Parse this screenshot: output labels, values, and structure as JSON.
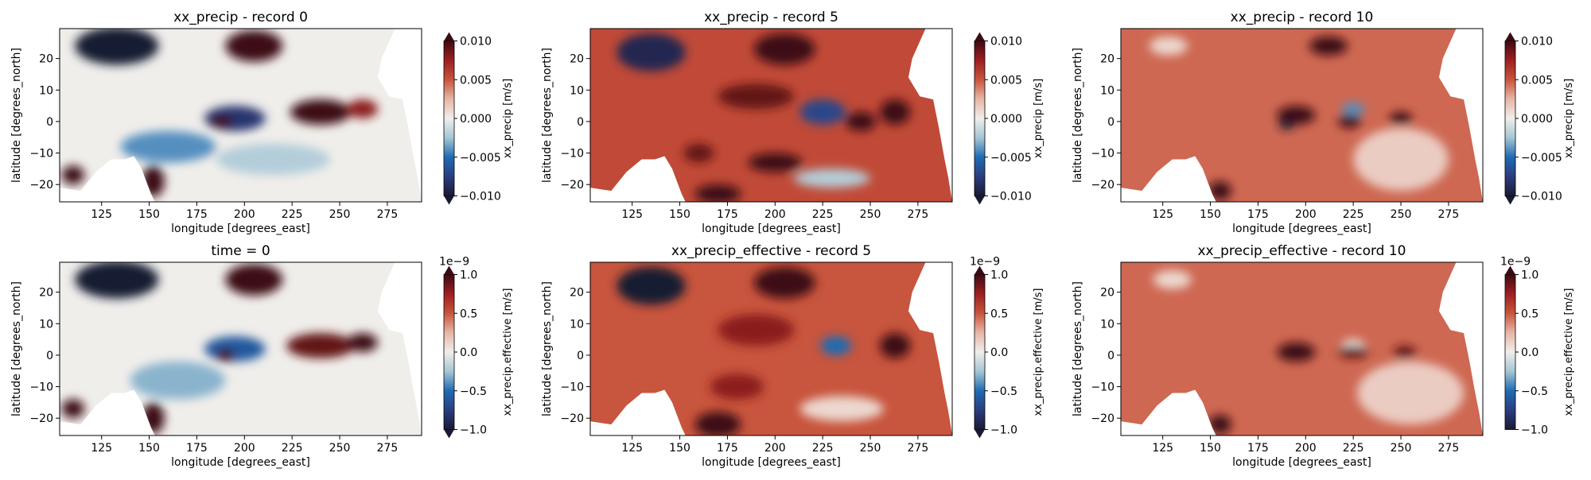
{
  "colors": {
    "cmap_stops": [
      "#191a33",
      "#2b3d7e",
      "#1f6bb3",
      "#a5c6d4",
      "#f0eeeb",
      "#e7b6a6",
      "#c8553d",
      "#9e1f20",
      "#3d0b13"
    ],
    "land_mask": "#ffffff",
    "frame": "#000000"
  },
  "chart_data": [
    {
      "type": "heatmap",
      "title": "xx_precip - record 0",
      "xlabel": "longitude [degrees_east]",
      "ylabel": "latitude [degrees_north]",
      "xlim": [
        103,
        293
      ],
      "ylim": [
        -25.5,
        29.5
      ],
      "xticks": [
        125,
        150,
        175,
        200,
        225,
        250,
        275
      ],
      "yticks": [
        -20,
        -10,
        0,
        10,
        20
      ],
      "colorbar": {
        "label": "xx_precip [m/s]",
        "vmin": -0.01,
        "vmax": 0.01,
        "ticks": [
          "0.010",
          "0.005",
          "0.000",
          "−0.005",
          "−0.010"
        ],
        "exponent": "",
        "extend": "both"
      },
      "background": 0.0,
      "blobs": [
        {
          "lon": 133,
          "lat": 24,
          "rx": 22,
          "ry": 6,
          "value": -0.012
        },
        {
          "lon": 205,
          "lat": 24,
          "rx": 15,
          "ry": 5,
          "value": 0.011
        },
        {
          "lon": 195,
          "lat": 1,
          "rx": 16,
          "ry": 4,
          "value": -0.008
        },
        {
          "lon": 240,
          "lat": 3,
          "rx": 16,
          "ry": 4,
          "value": 0.01
        },
        {
          "lon": 262,
          "lat": 4,
          "rx": 8,
          "ry": 3,
          "value": 0.008
        },
        {
          "lon": 188,
          "lat": 0,
          "rx": 6,
          "ry": 2,
          "value": 0.011
        },
        {
          "lon": 160,
          "lat": -8,
          "rx": 25,
          "ry": 5,
          "value": -0.004
        },
        {
          "lon": 215,
          "lat": -12,
          "rx": 30,
          "ry": 5,
          "value": -0.002
        },
        {
          "lon": 110,
          "lat": -17,
          "rx": 6,
          "ry": 3,
          "value": 0.011
        },
        {
          "lon": 152,
          "lat": -19,
          "rx": 6,
          "ry": 5,
          "value": 0.01
        }
      ]
    },
    {
      "type": "heatmap",
      "title": "xx_precip - record 5",
      "xlabel": "longitude [degrees_east]",
      "ylabel": "latitude [degrees_north]",
      "xlim": [
        103,
        293
      ],
      "ylim": [
        -25.5,
        29.5
      ],
      "xticks": [
        125,
        150,
        175,
        200,
        225,
        250,
        275
      ],
      "yticks": [
        -20,
        -10,
        0,
        10,
        20
      ],
      "colorbar": {
        "label": "xx_precip [m/s]",
        "vmin": -0.01,
        "vmax": 0.01,
        "ticks": [
          "0.010",
          "0.005",
          "0.000",
          "−0.005",
          "−0.010"
        ],
        "exponent": "",
        "extend": "both"
      },
      "background": 0.0055,
      "blobs": [
        {
          "lon": 135,
          "lat": 22,
          "rx": 18,
          "ry": 6,
          "value": -0.009
        },
        {
          "lon": 205,
          "lat": 23,
          "rx": 16,
          "ry": 5,
          "value": 0.011
        },
        {
          "lon": 225,
          "lat": 3,
          "rx": 12,
          "ry": 4,
          "value": -0.007
        },
        {
          "lon": 263,
          "lat": 3,
          "rx": 8,
          "ry": 4,
          "value": 0.011
        },
        {
          "lon": 245,
          "lat": 0,
          "rx": 8,
          "ry": 3,
          "value": 0.01
        },
        {
          "lon": 200,
          "lat": -13,
          "rx": 14,
          "ry": 3,
          "value": 0.01
        },
        {
          "lon": 170,
          "lat": -23,
          "rx": 12,
          "ry": 3,
          "value": 0.012
        },
        {
          "lon": 230,
          "lat": -18,
          "rx": 20,
          "ry": 3,
          "value": -0.002
        },
        {
          "lon": 190,
          "lat": 8,
          "rx": 20,
          "ry": 4,
          "value": 0.009
        },
        {
          "lon": 160,
          "lat": -10,
          "rx": 8,
          "ry": 3,
          "value": 0.009
        }
      ]
    },
    {
      "type": "heatmap",
      "title": "xx_precip - record 10",
      "xlabel": "longitude [degrees_east]",
      "ylabel": "latitude [degrees_north]",
      "xlim": [
        103,
        293
      ],
      "ylim": [
        -25.5,
        29.5
      ],
      "xticks": [
        125,
        150,
        175,
        200,
        225,
        250,
        275
      ],
      "yticks": [
        -20,
        -10,
        0,
        10,
        20
      ],
      "colorbar": {
        "label": "xx_precip [m/s]",
        "vmin": -0.01,
        "vmax": 0.01,
        "ticks": [
          "0.010",
          "0.005",
          "0.000",
          "−0.005",
          "−0.010"
        ],
        "exponent": "",
        "extend": "both"
      },
      "background": 0.0045,
      "blobs": [
        {
          "lon": 212,
          "lat": 24,
          "rx": 10,
          "ry": 3,
          "value": 0.011
        },
        {
          "lon": 128,
          "lat": 24,
          "rx": 10,
          "ry": 3,
          "value": 0.001
        },
        {
          "lon": 195,
          "lat": 2,
          "rx": 10,
          "ry": 3,
          "value": 0.011
        },
        {
          "lon": 190,
          "lat": -1,
          "rx": 4,
          "ry": 1.5,
          "value": -0.011
        },
        {
          "lon": 225,
          "lat": 4,
          "rx": 6,
          "ry": 2,
          "value": -0.004
        },
        {
          "lon": 223,
          "lat": 0,
          "rx": 6,
          "ry": 2,
          "value": 0.011
        },
        {
          "lon": 250,
          "lat": 1,
          "rx": 6,
          "ry": 2,
          "value": 0.011
        },
        {
          "lon": 250,
          "lat": -12,
          "rx": 25,
          "ry": 10,
          "value": 0.0015
        },
        {
          "lon": 155,
          "lat": -22,
          "rx": 6,
          "ry": 3,
          "value": 0.012
        }
      ]
    },
    {
      "type": "heatmap",
      "title": "time = 0",
      "xlabel": "longitude [degrees_east]",
      "ylabel": "latitude [degrees_north]",
      "xlim": [
        103,
        293
      ],
      "ylim": [
        -25.5,
        29.5
      ],
      "xticks": [
        125,
        150,
        175,
        200,
        225,
        250,
        275
      ],
      "yticks": [
        -20,
        -10,
        0,
        10,
        20
      ],
      "colorbar": {
        "label": "xx_precip.effective [m/s]",
        "vmin": -1.0,
        "vmax": 1.0,
        "ticks": [
          "1.0",
          "0.5",
          "0.0",
          "−0.5",
          "−1.0"
        ],
        "exponent": "1e−9",
        "extend": "both"
      },
      "background": 0.0,
      "blobs": [
        {
          "lon": 133,
          "lat": 24,
          "rx": 22,
          "ry": 6,
          "value": -1.2
        },
        {
          "lon": 205,
          "lat": 24,
          "rx": 15,
          "ry": 5,
          "value": 1.1
        },
        {
          "lon": 195,
          "lat": 2,
          "rx": 16,
          "ry": 4,
          "value": -0.6
        },
        {
          "lon": 240,
          "lat": 3,
          "rx": 18,
          "ry": 4,
          "value": 0.9
        },
        {
          "lon": 262,
          "lat": 4,
          "rx": 8,
          "ry": 3,
          "value": 1.0
        },
        {
          "lon": 190,
          "lat": 0,
          "rx": 5,
          "ry": 2,
          "value": 1.1
        },
        {
          "lon": 165,
          "lat": -8,
          "rx": 25,
          "ry": 6,
          "value": -0.3
        },
        {
          "lon": 110,
          "lat": -17,
          "rx": 6,
          "ry": 3,
          "value": 1.1
        },
        {
          "lon": 152,
          "lat": -20,
          "rx": 6,
          "ry": 5,
          "value": 1.0
        }
      ]
    },
    {
      "type": "heatmap",
      "title": "xx_precip_effective - record 5",
      "xlabel": "longitude [degrees_east]",
      "ylabel": "latitude [degrees_north]",
      "xlim": [
        103,
        293
      ],
      "ylim": [
        -25.5,
        29.5
      ],
      "xticks": [
        125,
        150,
        175,
        200,
        225,
        250,
        275
      ],
      "yticks": [
        -20,
        -10,
        0,
        10,
        20
      ],
      "colorbar": {
        "label": "xx_precip.effective [m/s]",
        "vmin": -1.0,
        "vmax": 1.0,
        "ticks": [
          "1.0",
          "0.5",
          "0.0",
          "−0.5",
          "−1.0"
        ],
        "exponent": "1e−9",
        "extend": "both"
      },
      "background": 0.5,
      "blobs": [
        {
          "lon": 135,
          "lat": 22,
          "rx": 18,
          "ry": 6,
          "value": -1.0
        },
        {
          "lon": 205,
          "lat": 23,
          "rx": 16,
          "ry": 5,
          "value": 1.1
        },
        {
          "lon": 232,
          "lat": 3,
          "rx": 8,
          "ry": 3,
          "value": -0.5
        },
        {
          "lon": 263,
          "lat": 3,
          "rx": 8,
          "ry": 4,
          "value": 1.1
        },
        {
          "lon": 170,
          "lat": -22,
          "rx": 12,
          "ry": 4,
          "value": 1.2
        },
        {
          "lon": 235,
          "lat": -17,
          "rx": 22,
          "ry": 4,
          "value": 0.1
        },
        {
          "lon": 190,
          "lat": 8,
          "rx": 20,
          "ry": 5,
          "value": 0.8
        },
        {
          "lon": 180,
          "lat": -10,
          "rx": 14,
          "ry": 4,
          "value": 0.8
        }
      ]
    },
    {
      "type": "heatmap",
      "title": "xx_precip_effective - record 10",
      "xlabel": "longitude [degrees_east]",
      "ylabel": "latitude [degrees_north]",
      "xlim": [
        103,
        293
      ],
      "ylim": [
        -25.5,
        29.5
      ],
      "xticks": [
        125,
        150,
        175,
        200,
        225,
        250,
        275
      ],
      "yticks": [
        -20,
        -10,
        0,
        10,
        20
      ],
      "colorbar": {
        "label": "xx_precip.effective [m/s]",
        "vmin": -1.0,
        "vmax": 1.0,
        "ticks": [
          "1.0",
          "0.5",
          "0.0",
          "−0.5",
          "−1.0"
        ],
        "exponent": "1e−9",
        "extend": "max"
      },
      "background": 0.45,
      "blobs": [
        {
          "lon": 130,
          "lat": 24,
          "rx": 10,
          "ry": 3,
          "value": 0.1
        },
        {
          "lon": 195,
          "lat": 1,
          "rx": 10,
          "ry": 3,
          "value": 1.1
        },
        {
          "lon": 225,
          "lat": 3,
          "rx": 6,
          "ry": 2,
          "value": 0.0
        },
        {
          "lon": 225,
          "lat": 1,
          "rx": 8,
          "ry": 2,
          "value": 0.9
        },
        {
          "lon": 252,
          "lat": 1,
          "rx": 6,
          "ry": 2,
          "value": 0.9
        },
        {
          "lon": 255,
          "lat": -12,
          "rx": 28,
          "ry": 10,
          "value": 0.15
        },
        {
          "lon": 155,
          "lat": -22,
          "rx": 6,
          "ry": 3,
          "value": 1.2
        }
      ]
    }
  ]
}
